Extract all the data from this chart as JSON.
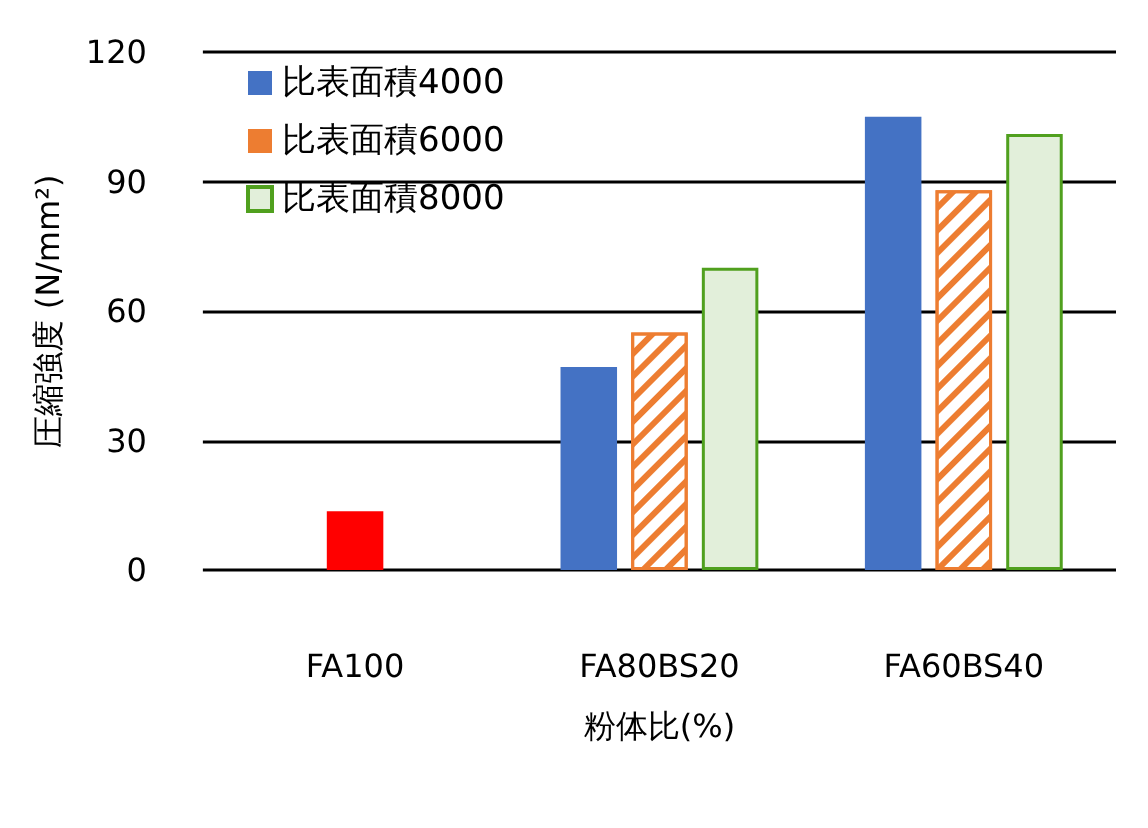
{
  "chart_data": {
    "type": "bar",
    "xlabel": "粉体比(%)",
    "ylabel": "圧縮強度 (N/mm²)",
    "categories": [
      "FA100",
      "FA80BS20",
      "FA60BS40"
    ],
    "series": [
      {
        "name": "比表面積4000",
        "color": "#4472c4",
        "values": [
          null,
          47,
          105
        ]
      },
      {
        "name": "比表面積6000",
        "color": "#ed7d31",
        "colors": [
          "#ff0000",
          "#ed7d31",
          "#ed7d31"
        ],
        "values": [
          13.6,
          55,
          88
        ]
      },
      {
        "name": "比表面積8000",
        "color": "#e2efda",
        "values": [
          null,
          70,
          101
        ]
      }
    ],
    "ylim": [
      0,
      120
    ],
    "yticks": [
      0,
      30,
      60,
      90,
      120
    ],
    "grid": "y",
    "legend": "top left"
  }
}
